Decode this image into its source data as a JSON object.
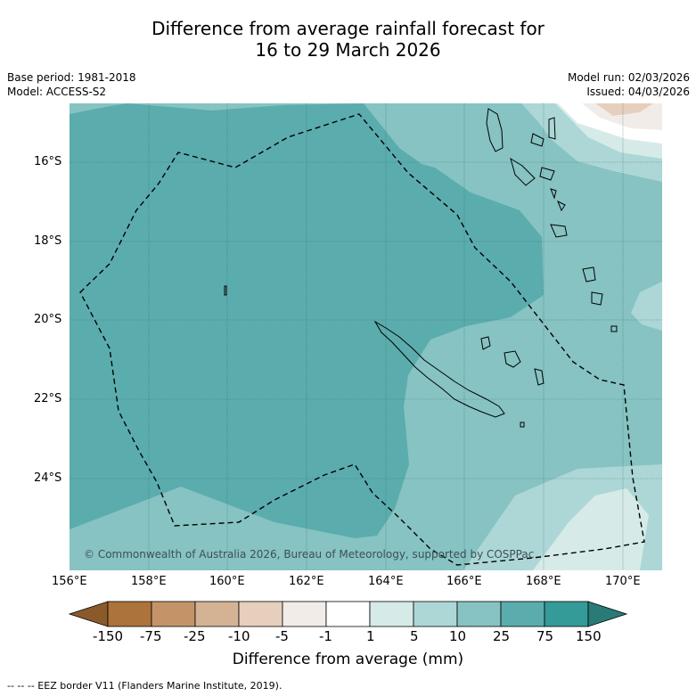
{
  "title": {
    "line1": "Difference from average rainfall forecast for",
    "line2": "16 to 29 March 2026"
  },
  "meta": {
    "base_period": "Base period: 1981-2018",
    "model": "Model: ACCESS-S2",
    "model_run": "Model run: 02/03/2026",
    "issued": "Issued: 04/03/2026"
  },
  "map": {
    "lat_labels": [
      "16°S",
      "18°S",
      "20°S",
      "22°S",
      "24°S"
    ],
    "lon_labels": [
      "156°E",
      "158°E",
      "160°E",
      "162°E",
      "164°E",
      "166°E",
      "168°E",
      "170°E"
    ],
    "copyright": "© Commonwealth of Australia 2026, Bureau of Meteorology, supported by COSPPac"
  },
  "colorbar": {
    "ticks": [
      "-150",
      "-75",
      "-25",
      "-10",
      "-5",
      "-1",
      "1",
      "5",
      "10",
      "25",
      "75",
      "150"
    ],
    "colors": [
      "#8b5a2b",
      "#ad733d",
      "#c49468",
      "#d4b394",
      "#e6cfbc",
      "#f2ece8",
      "#ffffff",
      "#d6ebe8",
      "#acd7d6",
      "#86c3c2",
      "#5bacad",
      "#349b98",
      "#2a7b78"
    ],
    "title": "Difference from average (mm)"
  },
  "footer": "--  --  -- EEZ border V11 (Flanders Marine Institute, 2019)."
}
